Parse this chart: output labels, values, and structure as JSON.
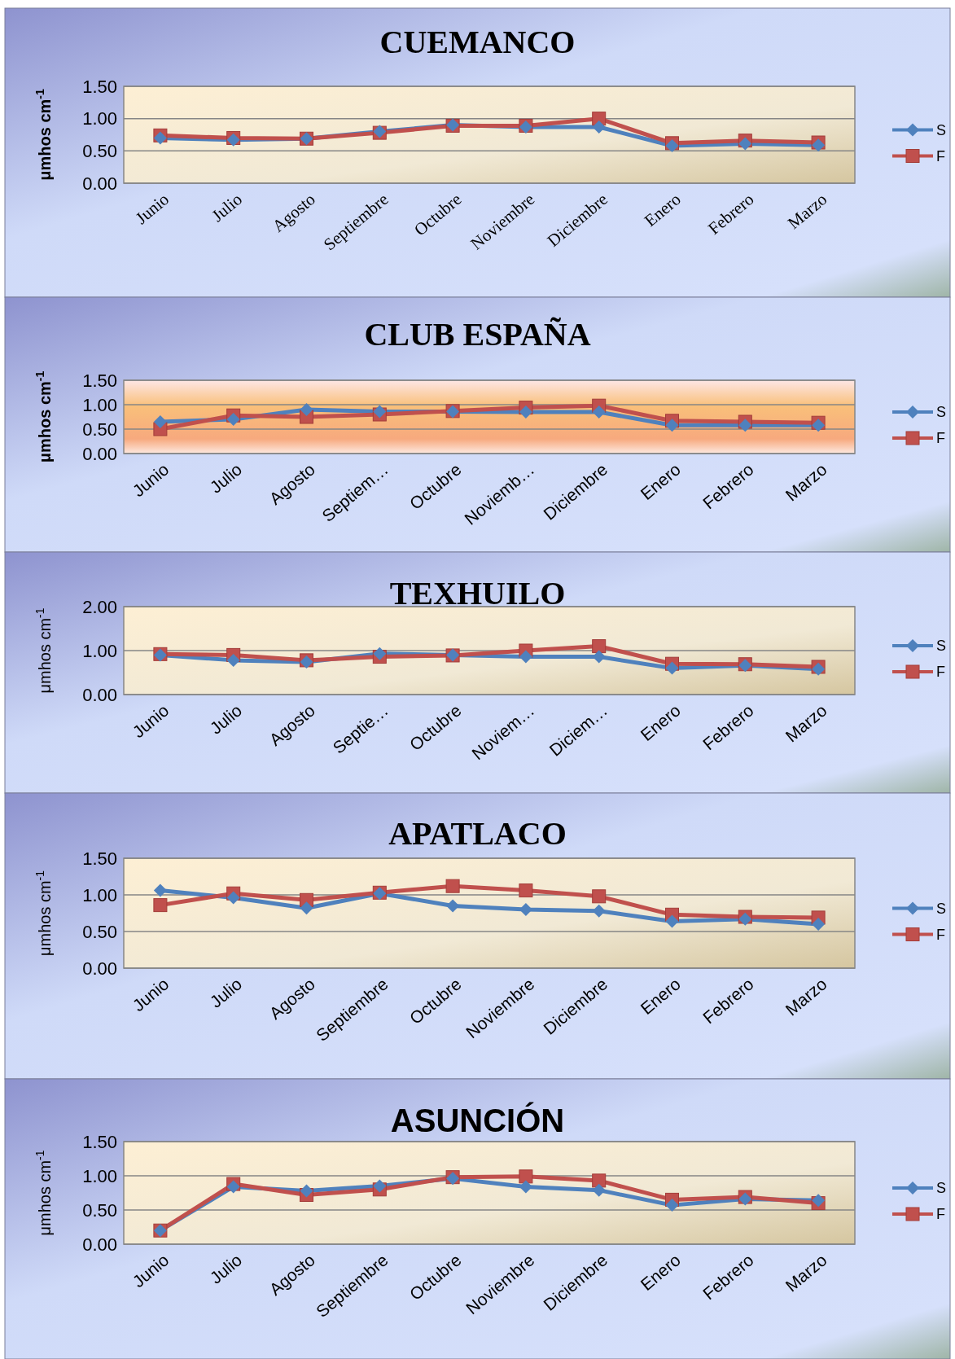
{
  "chart_data": [
    {
      "type": "line",
      "title": "CUEMANCO",
      "ylabel": "μmhos cm$^{-1}$",
      "categories": [
        "Junio",
        "Julio",
        "Agosto",
        "Septiembre",
        "Octubre",
        "Noviembre",
        "Diciembre",
        "Enero",
        "Febrero",
        "Marzo"
      ],
      "series": [
        {
          "name": "S",
          "color": "#4f81bd",
          "marker": "diamond",
          "values": [
            0.7,
            0.67,
            0.69,
            0.8,
            0.9,
            0.87,
            0.87,
            0.58,
            0.61,
            0.59
          ]
        },
        {
          "name": "F",
          "color": "#c0504d",
          "marker": "square",
          "values": [
            0.74,
            0.7,
            0.69,
            0.78,
            0.89,
            0.89,
            1.0,
            0.62,
            0.66,
            0.63
          ]
        }
      ],
      "ylim": [
        0,
        1.5
      ],
      "yticks": [
        {
          "value": 0,
          "label": "0.00"
        },
        {
          "value": 0.5,
          "label": "0.50"
        },
        {
          "value": 1,
          "label": "1.00"
        },
        {
          "value": 1.5,
          "label": "1.50"
        }
      ],
      "grid": "y",
      "legend": "right"
    },
    {
      "type": "line",
      "title": "CLUB ESPAÑA",
      "ylabel": "μmhos cm$^{-1}$",
      "categories": [
        "Junio",
        "Julio",
        "Agosto",
        "Septiem…",
        "Octubre",
        "Noviemb…",
        "Diciembre",
        "Enero",
        "Febrero",
        "Marzo"
      ],
      "series": [
        {
          "name": "S",
          "color": "#4f81bd",
          "marker": "diamond",
          "values": [
            0.65,
            0.7,
            0.9,
            0.86,
            0.86,
            0.85,
            0.85,
            0.58,
            0.58,
            0.58
          ]
        },
        {
          "name": "F",
          "color": "#c0504d",
          "marker": "square",
          "values": [
            0.5,
            0.78,
            0.75,
            0.8,
            0.87,
            0.94,
            0.98,
            0.67,
            0.65,
            0.63
          ]
        }
      ],
      "ylim": [
        0,
        1.5
      ],
      "yticks": [
        {
          "value": 0,
          "label": "0.00"
        },
        {
          "value": 0.5,
          "label": "0.50"
        },
        {
          "value": 1,
          "label": "1.00"
        },
        {
          "value": 1.5,
          "label": "1.50"
        }
      ],
      "grid": "y",
      "legend": "right"
    },
    {
      "type": "line",
      "title": "TEXHUILO",
      "ylabel": "μmhos cm$^{-1}$",
      "categories": [
        "Junio",
        "Julio",
        "Agosto",
        "Septie…",
        "Octubre",
        "Noviem…",
        "Diciem…",
        "Enero",
        "Febrero",
        "Marzo"
      ],
      "series": [
        {
          "name": "S",
          "color": "#4f81bd",
          "marker": "diamond",
          "values": [
            0.9,
            0.78,
            0.74,
            0.93,
            0.9,
            0.86,
            0.86,
            0.6,
            0.66,
            0.58
          ]
        },
        {
          "name": "F",
          "color": "#c0504d",
          "marker": "square",
          "values": [
            0.92,
            0.9,
            0.78,
            0.86,
            0.89,
            1.0,
            1.1,
            0.7,
            0.69,
            0.63
          ]
        }
      ],
      "ylim": [
        0,
        2
      ],
      "yticks": [
        {
          "value": 0,
          "label": "0.00"
        },
        {
          "value": 1,
          "label": "1.00"
        },
        {
          "value": 2,
          "label": "2.00"
        }
      ],
      "grid": "y",
      "legend": "right"
    },
    {
      "type": "line",
      "title": "APATLACO",
      "ylabel": "μmhos cm$^{-1}$",
      "categories": [
        "Junio",
        "Julio",
        "Agosto",
        "Septiembre",
        "Octubre",
        "Noviembre",
        "Diciembre",
        "Enero",
        "Febrero",
        "Marzo"
      ],
      "series": [
        {
          "name": "S",
          "color": "#4f81bd",
          "marker": "diamond",
          "values": [
            1.06,
            0.96,
            0.82,
            1.02,
            0.85,
            0.8,
            0.78,
            0.64,
            0.67,
            0.6
          ]
        },
        {
          "name": "F",
          "color": "#c0504d",
          "marker": "square",
          "values": [
            0.86,
            1.02,
            0.93,
            1.03,
            1.12,
            1.06,
            0.98,
            0.73,
            0.7,
            0.69
          ]
        }
      ],
      "ylim": [
        0,
        1.5
      ],
      "yticks": [
        {
          "value": 0,
          "label": "0.00"
        },
        {
          "value": 0.5,
          "label": "0.50"
        },
        {
          "value": 1,
          "label": "1.00"
        },
        {
          "value": 1.5,
          "label": "1.50"
        }
      ],
      "grid": "y",
      "legend": "right"
    },
    {
      "type": "line",
      "title": "ASUNCIÓN",
      "ylabel": "μmhos cm$^{-1}$",
      "categories": [
        "Junio",
        "Julio",
        "Agosto",
        "Septiembre",
        "Octubre",
        "Noviembre",
        "Diciembre",
        "Enero",
        "Febrero",
        "Marzo"
      ],
      "series": [
        {
          "name": "S",
          "color": "#4f81bd",
          "marker": "diamond",
          "values": [
            0.2,
            0.84,
            0.78,
            0.85,
            0.96,
            0.84,
            0.79,
            0.57,
            0.66,
            0.64
          ]
        },
        {
          "name": "F",
          "color": "#c0504d",
          "marker": "square",
          "values": [
            0.2,
            0.88,
            0.72,
            0.8,
            0.98,
            0.99,
            0.93,
            0.65,
            0.69,
            0.6
          ]
        }
      ],
      "ylim": [
        0,
        1.5
      ],
      "yticks": [
        {
          "value": 0,
          "label": "0.00"
        },
        {
          "value": 0.5,
          "label": "0.50"
        },
        {
          "value": 1,
          "label": "1.00"
        },
        {
          "value": 1.5,
          "label": "1.50"
        }
      ],
      "grid": "y",
      "legend": "right"
    }
  ]
}
